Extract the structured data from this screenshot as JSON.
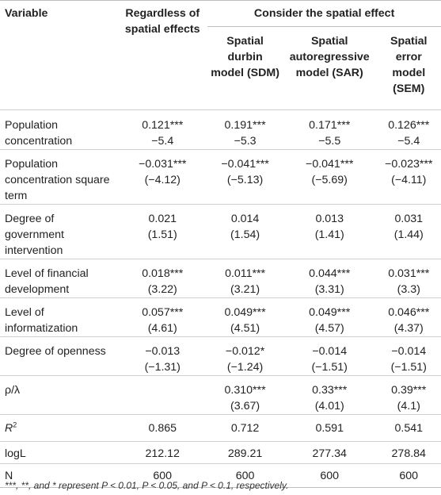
{
  "header": {
    "variable": "Variable",
    "regardless": "Regardless of spatial effects",
    "consider": "Consider the spatial effect",
    "sdm": "Spatial durbin model (SDM)",
    "sar": "Spatial autoregressive model (SAR)",
    "sem": "Spatial error model (SEM)"
  },
  "rows": [
    {
      "label": "Population concentration",
      "c1": [
        "0.121***",
        "−5.4"
      ],
      "c2": [
        "0.191***",
        "−5.3"
      ],
      "c3": [
        "0.171***",
        "−5.5"
      ],
      "c4": [
        "0.126***",
        "−5.4"
      ]
    },
    {
      "label": "Population concentration square term",
      "c1": [
        "−0.031***",
        "(−4.12)"
      ],
      "c2": [
        "−0.041***",
        "(−5.13)"
      ],
      "c3": [
        "−0.041***",
        "(−5.69)"
      ],
      "c4": [
        "−0.023***",
        "(−4.11)"
      ]
    },
    {
      "label": "Degree of government intervention",
      "c1": [
        "0.021",
        "(1.51)"
      ],
      "c2": [
        "0.014",
        "(1.54)"
      ],
      "c3": [
        "0.013",
        "(1.41)"
      ],
      "c4": [
        "0.031",
        "(1.44)"
      ]
    },
    {
      "label": "Level of financial development",
      "c1": [
        "0.018***",
        "(3.22)"
      ],
      "c2": [
        "0.011***",
        "(3.21)"
      ],
      "c3": [
        "0.044***",
        "(3.31)"
      ],
      "c4": [
        "0.031***",
        "(3.3)"
      ]
    },
    {
      "label": "Level of informatization",
      "c1": [
        "0.057***",
        "(4.61)"
      ],
      "c2": [
        "0.049***",
        "(4.51)"
      ],
      "c3": [
        "0.049***",
        "(4.57)"
      ],
      "c4": [
        "0.046***",
        "(4.37)"
      ]
    },
    {
      "label": "Degree of openness",
      "c1": [
        "−0.013",
        "(−1.31)"
      ],
      "c2": [
        "−0.012*",
        "(−1.24)"
      ],
      "c3": [
        "−0.014",
        "(−1.51)"
      ],
      "c4": [
        "−0.014",
        "(−1.51)"
      ]
    },
    {
      "label": "ρ/λ",
      "c1": [
        "",
        ""
      ],
      "c2": [
        "0.310***",
        "(3.67)"
      ],
      "c3": [
        "0.33***",
        "(4.01)"
      ],
      "c4": [
        "0.39***",
        "(4.1)"
      ]
    },
    {
      "label": "R",
      "label_sup": "2",
      "c1": [
        "0.865"
      ],
      "c2": [
        "0.712"
      ],
      "c3": [
        "0.591"
      ],
      "c4": [
        "0.541"
      ]
    },
    {
      "label": "logL",
      "c1": [
        "212.12"
      ],
      "c2": [
        "289.21"
      ],
      "c3": [
        "277.34"
      ],
      "c4": [
        "278.84"
      ]
    },
    {
      "label": "N",
      "c1": [
        "600"
      ],
      "c2": [
        "600"
      ],
      "c3": [
        "600"
      ],
      "c4": [
        "600"
      ]
    }
  ],
  "footnote": "***, **, and * represent P < 0.01, P < 0.05, and P < 0.1, respectively."
}
